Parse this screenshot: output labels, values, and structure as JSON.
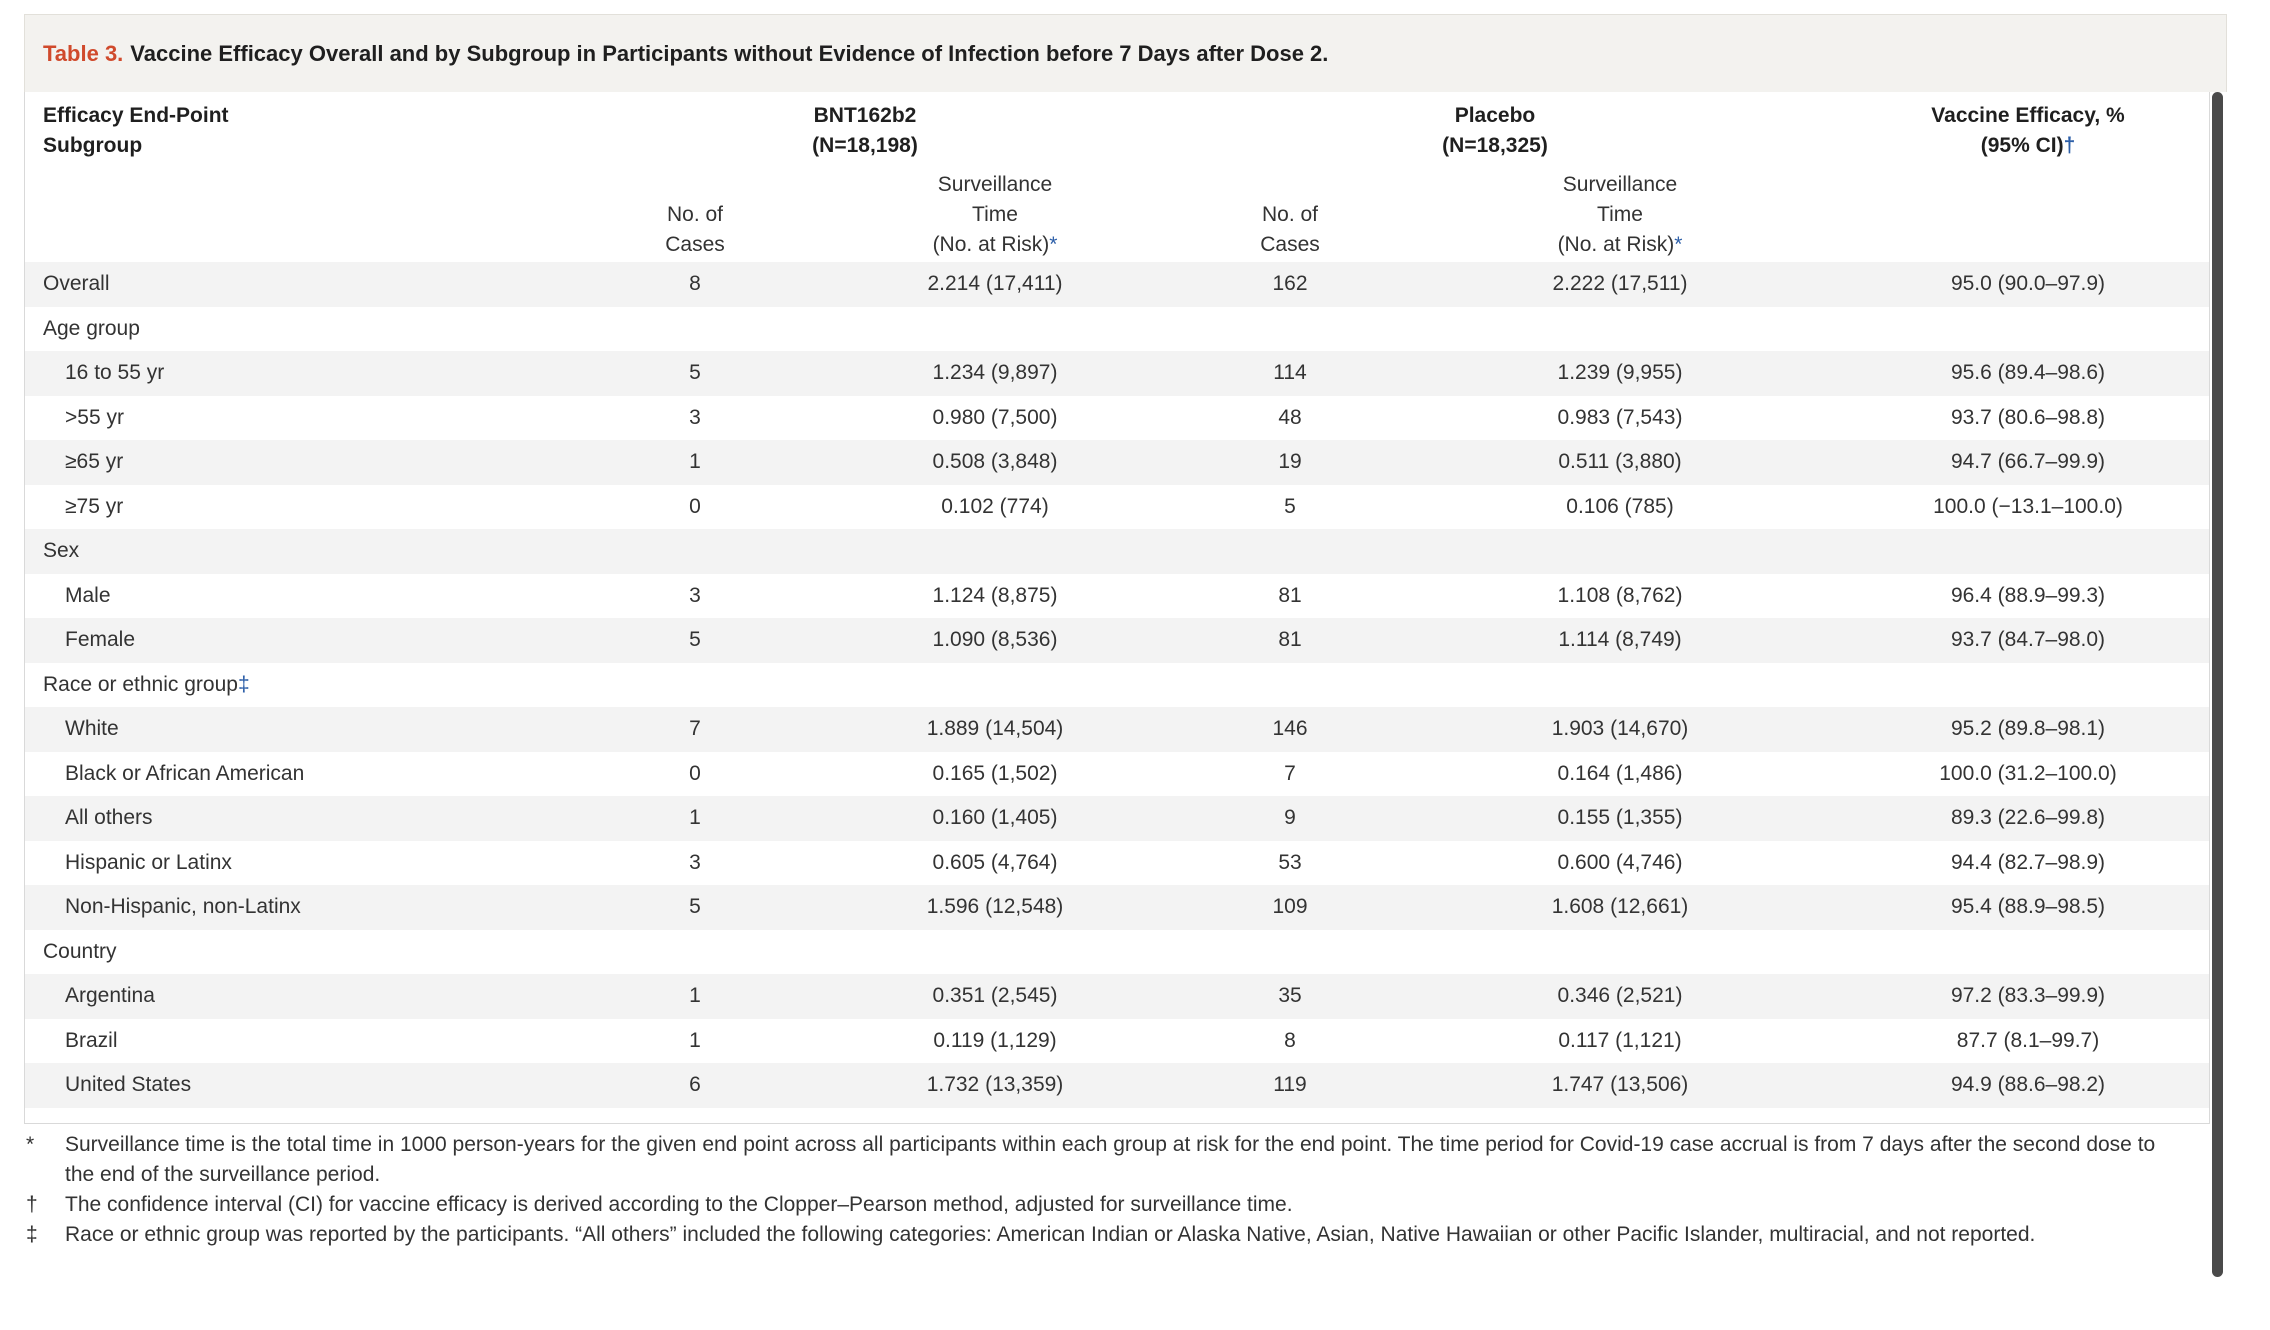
{
  "title": {
    "label": "Table 3.",
    "text": "Vaccine Efficacy Overall and by Subgroup in Participants without Evidence of Infection before 7 Days after Dose 2."
  },
  "header": {
    "col0_line1": "Efficacy End-Point",
    "col0_line2": "Subgroup",
    "bnt_line1": "BNT162b2",
    "bnt_line2": "(N=18,198)",
    "placebo_line1": "Placebo",
    "placebo_line2": "(N=18,325)",
    "ve_line1": "Vaccine Efficacy, %",
    "ve_line2": "(95% CI)",
    "ve_mark": "†",
    "cases_line1": "No. of",
    "cases_line2": "Cases",
    "surv_line1": "Surveillance",
    "surv_line2": "Time",
    "surv_line3": "(No. at Risk)",
    "surv_mark": "*"
  },
  "rows": [
    {
      "label": "Overall",
      "indent": false,
      "bnt_cases": "8",
      "bnt_surv": "2.214 (17,411)",
      "pl_cases": "162",
      "pl_surv": "2.222 (17,511)",
      "ve": "95.0 (90.0–97.9)"
    },
    {
      "label": "Age group",
      "indent": false,
      "mark": "",
      "bnt_cases": "",
      "bnt_surv": "",
      "pl_cases": "",
      "pl_surv": "",
      "ve": ""
    },
    {
      "label": "16 to 55 yr",
      "indent": true,
      "bnt_cases": "5",
      "bnt_surv": "1.234 (9,897)",
      "pl_cases": "114",
      "pl_surv": "1.239 (9,955)",
      "ve": "95.6 (89.4–98.6)"
    },
    {
      "label": ">55 yr",
      "indent": true,
      "bnt_cases": "3",
      "bnt_surv": "0.980 (7,500)",
      "pl_cases": "48",
      "pl_surv": "0.983 (7,543)",
      "ve": "93.7 (80.6–98.8)"
    },
    {
      "label": "≥65 yr",
      "indent": true,
      "bnt_cases": "1",
      "bnt_surv": "0.508 (3,848)",
      "pl_cases": "19",
      "pl_surv": "0.511 (3,880)",
      "ve": "94.7 (66.7–99.9)"
    },
    {
      "label": "≥75 yr",
      "indent": true,
      "bnt_cases": "0",
      "bnt_surv": "0.102 (774)",
      "pl_cases": "5",
      "pl_surv": "0.106 (785)",
      "ve": "100.0 (−13.1–100.0)"
    },
    {
      "label": "Sex",
      "indent": false,
      "bnt_cases": "",
      "bnt_surv": "",
      "pl_cases": "",
      "pl_surv": "",
      "ve": ""
    },
    {
      "label": "Male",
      "indent": true,
      "bnt_cases": "3",
      "bnt_surv": "1.124 (8,875)",
      "pl_cases": "81",
      "pl_surv": "1.108 (8,762)",
      "ve": "96.4 (88.9–99.3)"
    },
    {
      "label": "Female",
      "indent": true,
      "bnt_cases": "5",
      "bnt_surv": "1.090 (8,536)",
      "pl_cases": "81",
      "pl_surv": "1.114 (8,749)",
      "ve": "93.7 (84.7–98.0)"
    },
    {
      "label": "Race or ethnic group",
      "indent": false,
      "mark": "‡",
      "bnt_cases": "",
      "bnt_surv": "",
      "pl_cases": "",
      "pl_surv": "",
      "ve": ""
    },
    {
      "label": "White",
      "indent": true,
      "bnt_cases": "7",
      "bnt_surv": "1.889 (14,504)",
      "pl_cases": "146",
      "pl_surv": "1.903 (14,670)",
      "ve": "95.2 (89.8–98.1)"
    },
    {
      "label": "Black or African American",
      "indent": true,
      "bnt_cases": "0",
      "bnt_surv": "0.165 (1,502)",
      "pl_cases": "7",
      "pl_surv": "0.164 (1,486)",
      "ve": "100.0 (31.2–100.0)"
    },
    {
      "label": "All others",
      "indent": true,
      "bnt_cases": "1",
      "bnt_surv": "0.160 (1,405)",
      "pl_cases": "9",
      "pl_surv": "0.155 (1,355)",
      "ve": "89.3 (22.6–99.8)"
    },
    {
      "label": "Hispanic or Latinx",
      "indent": true,
      "bnt_cases": "3",
      "bnt_surv": "0.605 (4,764)",
      "pl_cases": "53",
      "pl_surv": "0.600 (4,746)",
      "ve": "94.4 (82.7–98.9)"
    },
    {
      "label": "Non-Hispanic, non-Latinx",
      "indent": true,
      "bnt_cases": "5",
      "bnt_surv": "1.596 (12,548)",
      "pl_cases": "109",
      "pl_surv": "1.608 (12,661)",
      "ve": "95.4 (88.9–98.5)"
    },
    {
      "label": "Country",
      "indent": false,
      "bnt_cases": "",
      "bnt_surv": "",
      "pl_cases": "",
      "pl_surv": "",
      "ve": ""
    },
    {
      "label": "Argentina",
      "indent": true,
      "bnt_cases": "1",
      "bnt_surv": "0.351 (2,545)",
      "pl_cases": "35",
      "pl_surv": "0.346 (2,521)",
      "ve": "97.2 (83.3–99.9)"
    },
    {
      "label": "Brazil",
      "indent": true,
      "bnt_cases": "1",
      "bnt_surv": "0.119 (1,129)",
      "pl_cases": "8",
      "pl_surv": "0.117 (1,121)",
      "ve": "87.7 (8.1–99.7)"
    },
    {
      "label": "United States",
      "indent": true,
      "bnt_cases": "6",
      "bnt_surv": "1.732 (13,359)",
      "pl_cases": "119",
      "pl_surv": "1.747 (13,506)",
      "ve": "94.9 (88.6–98.2)"
    }
  ],
  "footnotes": [
    {
      "symbol": "*",
      "text": "Surveillance time is the total time in 1000 person-years for the given end point across all participants within each group at risk for the end point. The time period for Covid-19 case accrual is from 7 days after the second dose to the end of the surveillance period."
    },
    {
      "symbol": "†",
      "text": "The confidence interval (CI) for vaccine efficacy is derived according to the Clopper–Pearson method, adjusted for surveillance time."
    },
    {
      "symbol": "‡",
      "text": "Race or ethnic group was reported by the participants. “All others” included the following categories: American Indian or Alaska Native, Asian, Native Hawaiian or other Pacific Islander, multiracial, and not reported."
    }
  ]
}
